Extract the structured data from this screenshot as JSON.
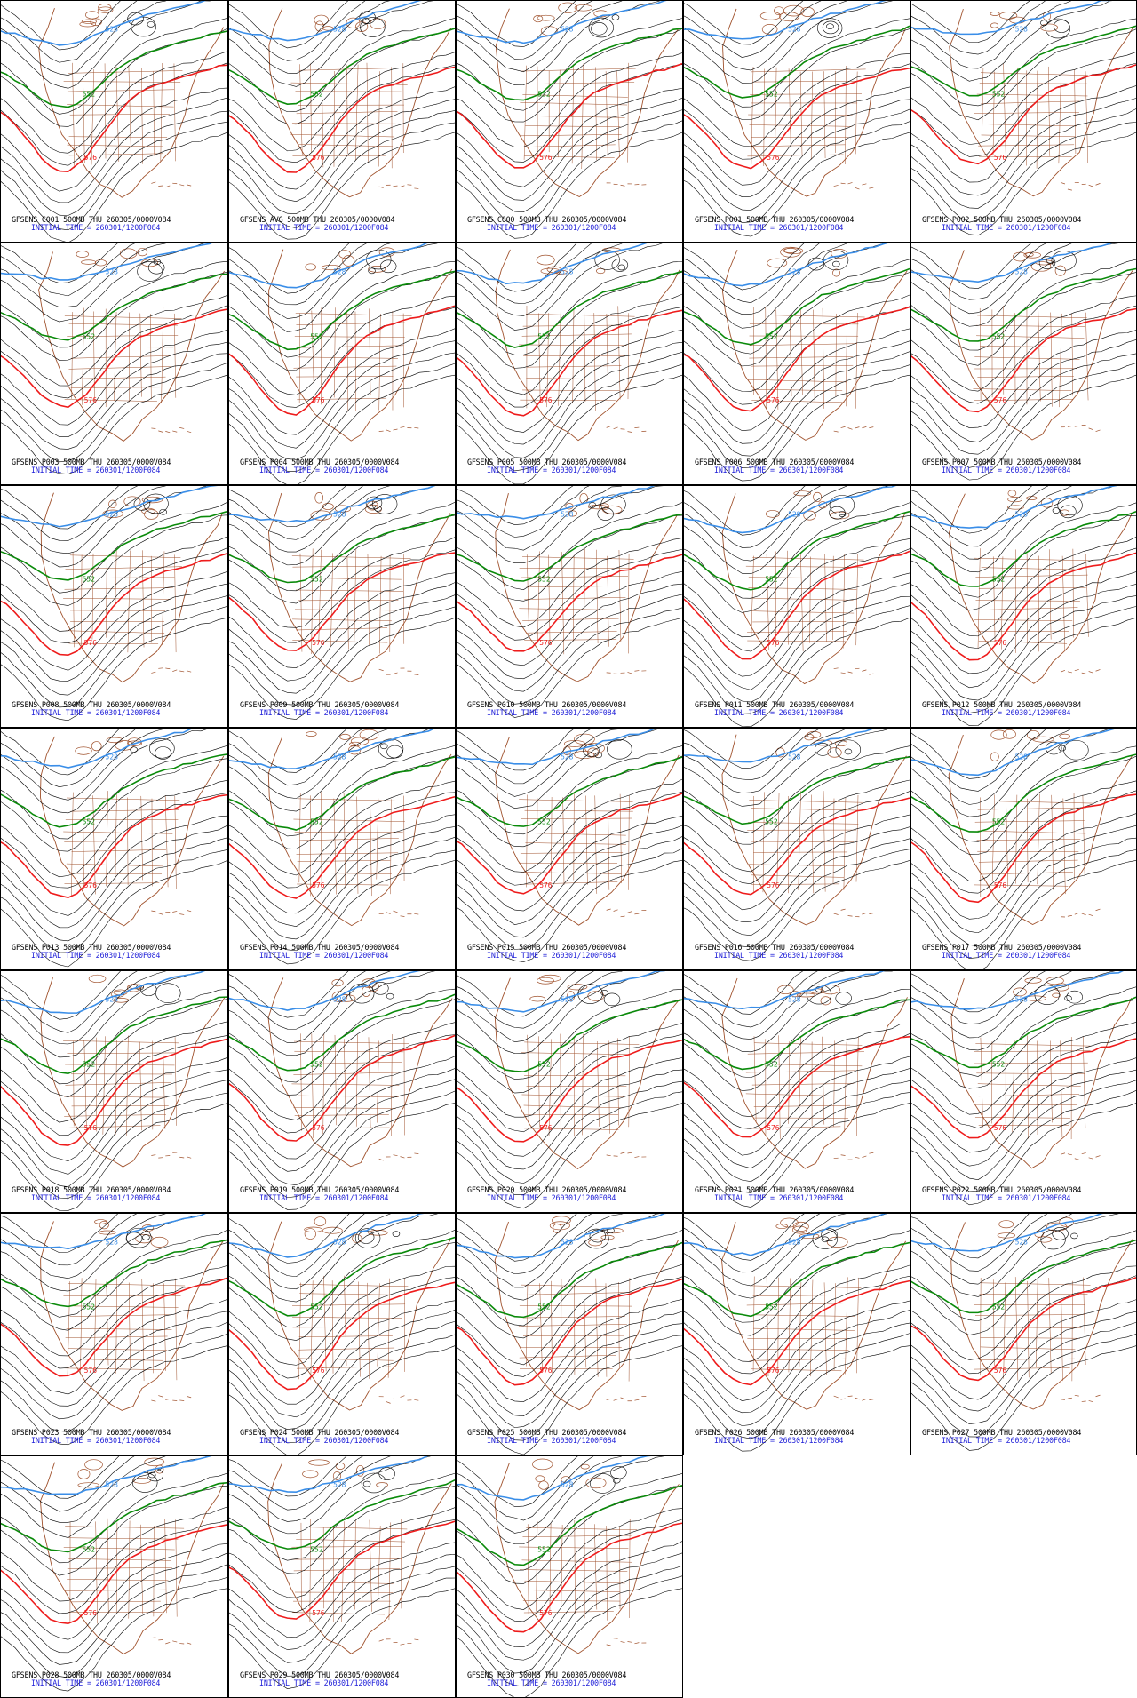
{
  "layout": {
    "columns": 5,
    "rows": 7
  },
  "colors": {
    "border": "#000000",
    "coast": "#a0522d",
    "contour": "#000000",
    "contour_528": "#3a8ee8",
    "contour_552": "#0a8a0a",
    "contour_576": "#ee1c1c",
    "caption_line1": "#000000",
    "caption_line2": "#1f1fd8"
  },
  "contour_labels": {
    "low": "528",
    "mid": "552",
    "high": "576"
  },
  "panels": [
    {
      "member": "C001",
      "title": "GFSENS C001 500MB THU 260305/0000V084",
      "init": "INITIAL TIME = 260301/1200F084"
    },
    {
      "member": "AVG",
      "title": "GFSENS AVG 500MB THU 260305/0000V084",
      "init": "INITIAL TIME = 260301/1200F084"
    },
    {
      "member": "C000",
      "title": "GFSENS C000 500MB THU 260305/0000V084",
      "init": "INITIAL TIME = 260301/1200F084"
    },
    {
      "member": "P001",
      "title": "GFSENS P001 500MB THU 260305/0000V084",
      "init": "INITIAL TIME = 260301/1200F084"
    },
    {
      "member": "P002",
      "title": "GFSENS P002 500MB THU 260305/0000V084",
      "init": "INITIAL TIME = 260301/1200F084"
    },
    {
      "member": "P003",
      "title": "GFSENS P003 500MB THU 260305/0000V084",
      "init": "INITIAL TIME = 260301/1200F084"
    },
    {
      "member": "P004",
      "title": "GFSENS P004 500MB THU 260305/0000V084",
      "init": "INITIAL TIME = 260301/1200F084"
    },
    {
      "member": "P005",
      "title": "GFSENS P005 500MB THU 260305/0000V084",
      "init": "INITIAL TIME = 260301/1200F084"
    },
    {
      "member": "P006",
      "title": "GFSENS P006 500MB THU 260305/0000V084",
      "init": "INITIAL TIME = 260301/1200F084"
    },
    {
      "member": "P007",
      "title": "GFSENS P007 500MB THU 260305/0000V084",
      "init": "INITIAL TIME = 260301/1200F084"
    },
    {
      "member": "P008",
      "title": "GFSENS P008 500MB THU 260305/0000V084",
      "init": "INITIAL TIME = 260301/1200F084"
    },
    {
      "member": "P009",
      "title": "GFSENS P009 500MB THU 260305/0000V084",
      "init": "INITIAL TIME = 260301/1200F084"
    },
    {
      "member": "P010",
      "title": "GFSENS P010 500MB THU 260305/0000V084",
      "init": "INITIAL TIME = 260301/1200F084"
    },
    {
      "member": "P011",
      "title": "GFSENS P011 500MB THU 260305/0000V084",
      "init": "INITIAL TIME = 260301/1200F084"
    },
    {
      "member": "P012",
      "title": "GFSENS P012 500MB THU 260305/0000V084",
      "init": "INITIAL TIME = 260301/1200F084"
    },
    {
      "member": "P013",
      "title": "GFSENS P013 500MB THU 260305/0000V084",
      "init": "INITIAL TIME = 260301/1200F084"
    },
    {
      "member": "P014",
      "title": "GFSENS P014 500MB THU 260305/0000V084",
      "init": "INITIAL TIME = 260301/1200F084"
    },
    {
      "member": "P015",
      "title": "GFSENS P015 500MB THU 260305/0000V084",
      "init": "INITIAL TIME = 260301/1200F084"
    },
    {
      "member": "P016",
      "title": "GFSENS P016 500MB THU 260305/0000V084",
      "init": "INITIAL TIME = 260301/1200F084"
    },
    {
      "member": "P017",
      "title": "GFSENS P017 500MB THU 260305/0000V084",
      "init": "INITIAL TIME = 260301/1200F084"
    },
    {
      "member": "P018",
      "title": "GFSENS P018 500MB THU 260305/0000V084",
      "init": "INITIAL TIME = 260301/1200F084"
    },
    {
      "member": "P019",
      "title": "GFSENS P019 500MB THU 260305/0000V084",
      "init": "INITIAL TIME = 260301/1200F084"
    },
    {
      "member": "P020",
      "title": "GFSENS P020 500MB THU 260305/0000V084",
      "init": "INITIAL TIME = 260301/1200F084"
    },
    {
      "member": "P021",
      "title": "GFSENS P021 500MB THU 260305/0000V084",
      "init": "INITIAL TIME = 260301/1200F084"
    },
    {
      "member": "P022",
      "title": "GFSENS P022 500MB THU 260305/0000V084",
      "init": "INITIAL TIME = 260301/1200F084"
    },
    {
      "member": "P023",
      "title": "GFSENS P023 500MB THU 260305/0000V084",
      "init": "INITIAL TIME = 260301/1200F084"
    },
    {
      "member": "P024",
      "title": "GFSENS P024 500MB THU 260305/0000V084",
      "init": "INITIAL TIME = 260301/1200F084"
    },
    {
      "member": "P025",
      "title": "GFSENS P025 500MB THU 260305/0000V084",
      "init": "INITIAL TIME = 260301/1200F084"
    },
    {
      "member": "P026",
      "title": "GFSENS P026 500MB THU 260305/0000V084",
      "init": "INITIAL TIME = 260301/1200F084"
    },
    {
      "member": "P027",
      "title": "GFSENS P027 500MB THU 260305/0000V084",
      "init": "INITIAL TIME = 260301/1200F084"
    },
    {
      "member": "P028",
      "title": "GFSENS P028 500MB THU 260305/0000V084",
      "init": "INITIAL TIME = 260301/1200F084"
    },
    {
      "member": "P029",
      "title": "GFSENS P029 500MB THU 260305/0000V084",
      "init": "INITIAL TIME = 260301/1200F084"
    },
    {
      "member": "P030",
      "title": "GFSENS P030 500MB THU 260305/0000V084",
      "init": "INITIAL TIME = 260301/1200F084"
    }
  ]
}
